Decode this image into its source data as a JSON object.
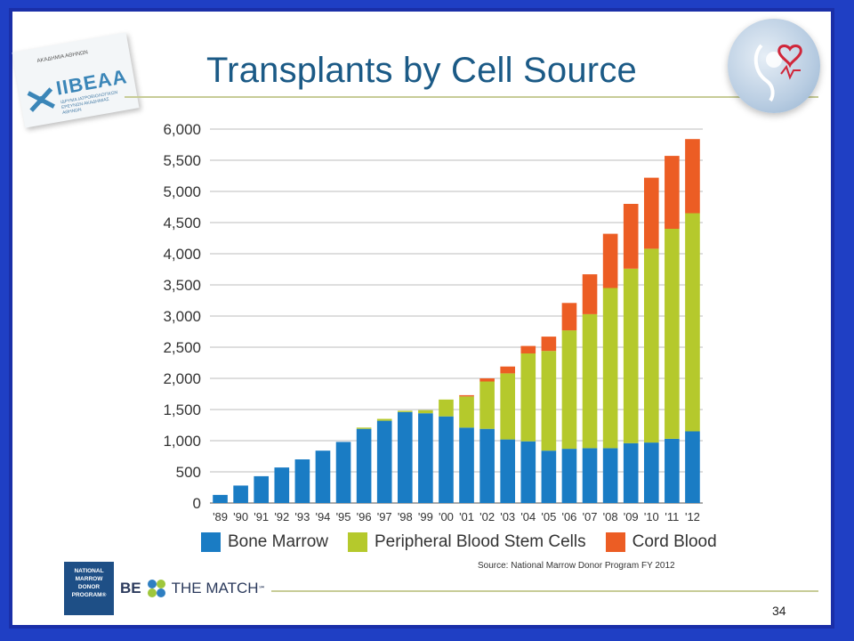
{
  "slide": {
    "title": "Transplants by Cell Source",
    "page_number": "34",
    "source": "Source: National Marrow Donor Program FY 2012",
    "logo_left": {
      "brand": "IIBEAA",
      "top_text": "ΑΚΑΔΗΜΙΑ ΑΘΗΝΩΝ",
      "sub_text": "ΙΔΡΥΜΑ ΙΑΤΡΟΒΙΟΛΟΓΙΚΩΝ ΕΡΕΥΝΩΝ ΑΚΑΔΗΜΙΑΣ ΑΘΗΝΩΝ"
    },
    "nmdp_logo": [
      "NATIONAL",
      "MARROW",
      "DONOR",
      "PROGRAM®"
    ],
    "bethematch": {
      "be": "BE",
      "the_match": "THE MATCH",
      "mark": "℠"
    }
  },
  "colors": {
    "bone_marrow": "#1a7cc4",
    "pbsc": "#b5c92c",
    "cord_blood": "#ec5d24",
    "title": "#1b5a86",
    "frame": "#1f3fc4"
  },
  "chart_data": {
    "type": "bar",
    "stacked": true,
    "title": "Transplants by Cell Source",
    "categories": [
      "'89",
      "'90",
      "'91",
      "'92",
      "'93",
      "'94",
      "'95",
      "'96",
      "'97",
      "'98",
      "'99",
      "'00",
      "'01",
      "'02",
      "'03",
      "'04",
      "'05",
      "'06",
      "'07",
      "'08",
      "'09",
      "'10",
      "'11",
      "'12"
    ],
    "series": [
      {
        "name": "Bone Marrow",
        "color": "#1a7cc4",
        "values": [
          130,
          280,
          430,
          570,
          700,
          840,
          980,
          1190,
          1320,
          1460,
          1440,
          1390,
          1210,
          1190,
          1020,
          990,
          840,
          870,
          880,
          880,
          960,
          970,
          1030,
          1150
        ]
      },
      {
        "name": "Peripheral Blood Stem Cells",
        "color": "#b5c92c",
        "values": [
          0,
          0,
          0,
          0,
          0,
          0,
          0,
          20,
          30,
          20,
          50,
          270,
          500,
          760,
          1060,
          1410,
          1600,
          1900,
          2150,
          2570,
          2800,
          3110,
          3370,
          3500
        ]
      },
      {
        "name": "Cord Blood",
        "color": "#ec5d24",
        "values": [
          0,
          0,
          0,
          0,
          0,
          0,
          0,
          0,
          0,
          0,
          0,
          0,
          20,
          50,
          110,
          120,
          230,
          440,
          640,
          870,
          1040,
          1140,
          1170,
          1190
        ]
      }
    ],
    "ylim": [
      0,
      6000
    ],
    "yticks": [
      "0",
      "500",
      "1,000",
      "1,500",
      "2,000",
      "2,500",
      "3,000",
      "3,500",
      "4,000",
      "4,500",
      "5,000",
      "5,500",
      "6,000"
    ],
    "ytick_values": [
      0,
      500,
      1000,
      1500,
      2000,
      2500,
      3000,
      3500,
      4000,
      4500,
      5000,
      5500,
      6000
    ],
    "xlabel": "",
    "ylabel": "",
    "grid": true,
    "legend_position": "bottom"
  }
}
